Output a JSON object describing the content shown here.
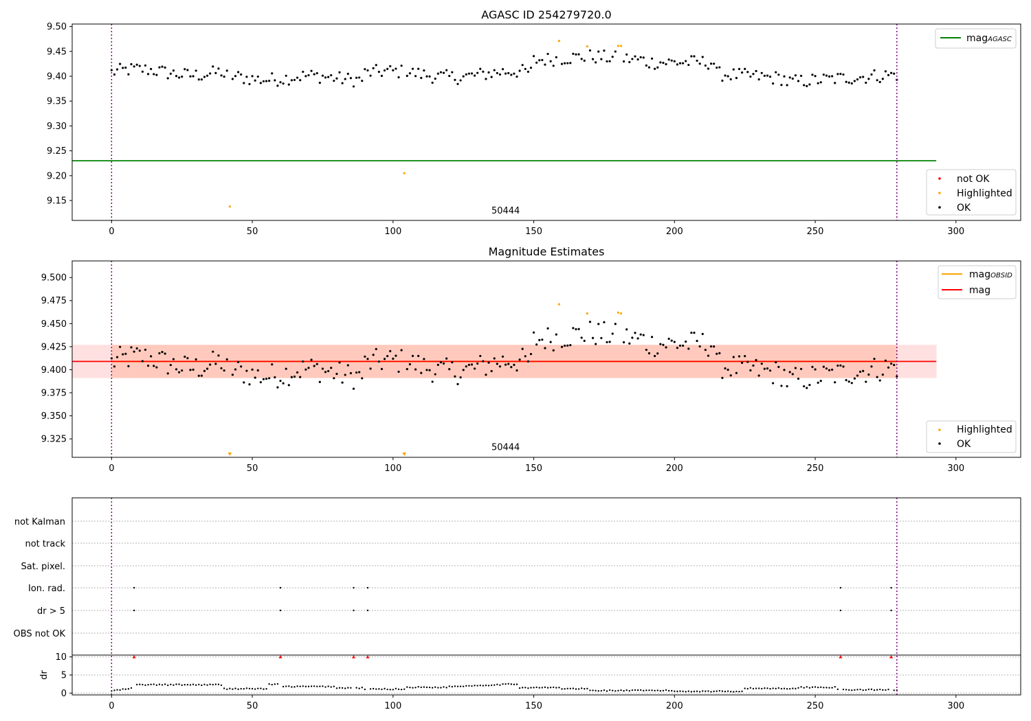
{
  "chart_data": [
    {
      "type": "scatter",
      "title": "AGASC ID 254279720.0",
      "xlim": [
        -14,
        323
      ],
      "ylim": [
        9.11,
        9.505
      ],
      "xticks": [
        0,
        50,
        100,
        150,
        200,
        250,
        300
      ],
      "yticks": [
        9.15,
        9.2,
        9.25,
        9.3,
        9.35,
        9.4,
        9.45,
        9.5
      ],
      "annotation": {
        "text": "50444",
        "x": 140,
        "y": 9.113
      },
      "vlines": [
        0,
        279
      ],
      "hline": {
        "name": "mag_AGASC",
        "y": 9.23,
        "x_range": [
          -14,
          293
        ],
        "color": "#008000"
      },
      "highlighted": [
        [
          42,
          9.138
        ],
        [
          104,
          9.205
        ],
        [
          159,
          9.471
        ],
        [
          169,
          9.46
        ],
        [
          180,
          9.461
        ],
        [
          181,
          9.461
        ]
      ],
      "not_ok": [],
      "legend_top": [
        {
          "label": "mag",
          "sub": "AGASC",
          "color": "#008000"
        }
      ],
      "legend_bottom": [
        {
          "label": "not OK",
          "color": "#ff0000"
        },
        {
          "label": "Highlighted",
          "color": "#ffa500"
        },
        {
          "label": "OK",
          "color": "#000000"
        }
      ]
    },
    {
      "type": "scatter",
      "title": "Magnitude Estimates",
      "xlim": [
        -14,
        323
      ],
      "ylim": [
        9.305,
        9.518
      ],
      "xticks": [
        0,
        50,
        100,
        150,
        200,
        250,
        300
      ],
      "yticks": [
        9.325,
        9.35,
        9.375,
        9.4,
        9.425,
        9.45,
        9.475,
        9.5
      ],
      "annotation": {
        "text": "50444",
        "x": 140,
        "y": 9.307
      },
      "vlines": [
        0,
        279
      ],
      "mag_line": {
        "name": "mag",
        "y": 9.409,
        "x_range": [
          -14,
          293
        ],
        "color": "#ff0000"
      },
      "mag_obsid_line": {
        "name": "mag_OBSID",
        "y": 9.409,
        "x_range": [
          0,
          279
        ],
        "color": "#ffa500"
      },
      "band_outer": {
        "y_low": 9.391,
        "y_high": 9.427,
        "x_range": [
          -14,
          293
        ],
        "color": "#ffcccc"
      },
      "band_inner": {
        "y_low": 9.391,
        "y_high": 9.427,
        "x_range": [
          0,
          279
        ],
        "color": "#ffa07a"
      },
      "highlighted": [
        [
          159,
          9.471
        ],
        [
          169,
          9.461
        ],
        [
          180,
          9.462
        ],
        [
          181,
          9.461
        ]
      ],
      "highlighted_below": [
        42,
        104
      ],
      "legend_top": [
        {
          "label": "mag",
          "sub": "OBSID",
          "color": "#ffa500"
        },
        {
          "label": "mag",
          "sub": "",
          "color": "#ff0000"
        }
      ],
      "legend_bottom": [
        {
          "label": "Highlighted",
          "color": "#ffa500"
        },
        {
          "label": "OK",
          "color": "#000000"
        }
      ]
    },
    {
      "type": "scatter",
      "title": "",
      "xlim": [
        -14,
        323
      ],
      "xticks": [
        0,
        50,
        100,
        150,
        200,
        250,
        300
      ],
      "vlines": [
        0,
        279
      ],
      "flag_rows": [
        "not Kalman",
        "not track",
        "Sat. pixel.",
        "Ion. rad.",
        "dr > 5",
        "OBS not OK"
      ],
      "flag_points": {
        "Ion. rad.": [
          8,
          60,
          86,
          91,
          259,
          277
        ],
        "dr > 5": [
          8,
          60,
          86,
          91,
          259,
          277
        ]
      },
      "dr_ylabel": "dr",
      "dr_ylim": [
        -0.5,
        10.5
      ],
      "dr_yticks": [
        0,
        5,
        10
      ],
      "dr_outliers": [
        8,
        60,
        86,
        91,
        259,
        277
      ]
    }
  ]
}
